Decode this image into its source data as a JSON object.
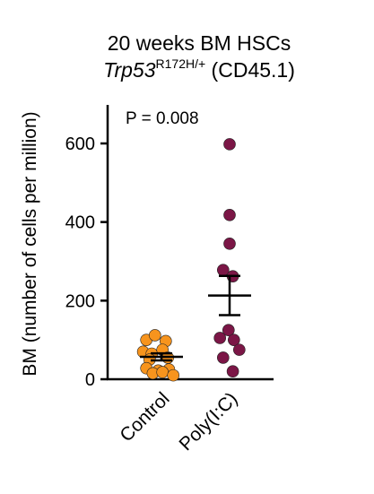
{
  "chart_data": {
    "type": "scatter",
    "title_line1": "20 weeks BM HSCs",
    "title_gene": "Trp53",
    "title_superscript": "R172H/+",
    "title_suffix": " (CD45.1)",
    "ylabel": "BM (number of cells per million)",
    "annotation": "P = 0.008",
    "ylim": [
      0,
      650
    ],
    "yticks": [
      0,
      200,
      400,
      600
    ],
    "categories": [
      "Control",
      "Poly(I:C)"
    ],
    "groups": [
      {
        "name": "Control",
        "color": "#f7941d",
        "points": [
          {
            "x": -0.28,
            "y": 100
          },
          {
            "x": -0.12,
            "y": 112
          },
          {
            "x": 0.08,
            "y": 97
          },
          {
            "x": -0.34,
            "y": 70
          },
          {
            "x": -0.18,
            "y": 65
          },
          {
            "x": 0.02,
            "y": 75
          },
          {
            "x": -0.22,
            "y": 50
          },
          {
            "x": 0.12,
            "y": 55
          },
          {
            "x": -0.28,
            "y": 28
          },
          {
            "x": -0.06,
            "y": 22
          },
          {
            "x": 0.14,
            "y": 25
          },
          {
            "x": -0.16,
            "y": 15
          },
          {
            "x": 0.02,
            "y": 18
          },
          {
            "x": 0.22,
            "y": 10
          }
        ],
        "mean": 57,
        "sem_low": 48,
        "sem_high": 66
      },
      {
        "name": "Poly(I:C)",
        "color": "#7b1646",
        "points": [
          {
            "x": 0.0,
            "y": 598
          },
          {
            "x": 0.0,
            "y": 418
          },
          {
            "x": 0.0,
            "y": 345
          },
          {
            "x": -0.12,
            "y": 278
          },
          {
            "x": 0.06,
            "y": 262
          },
          {
            "x": -0.02,
            "y": 125
          },
          {
            "x": -0.18,
            "y": 105
          },
          {
            "x": 0.08,
            "y": 100
          },
          {
            "x": -0.12,
            "y": 55
          },
          {
            "x": 0.18,
            "y": 75
          },
          {
            "x": 0.06,
            "y": 20
          }
        ],
        "mean": 213,
        "sem_low": 163,
        "sem_high": 263
      }
    ]
  }
}
